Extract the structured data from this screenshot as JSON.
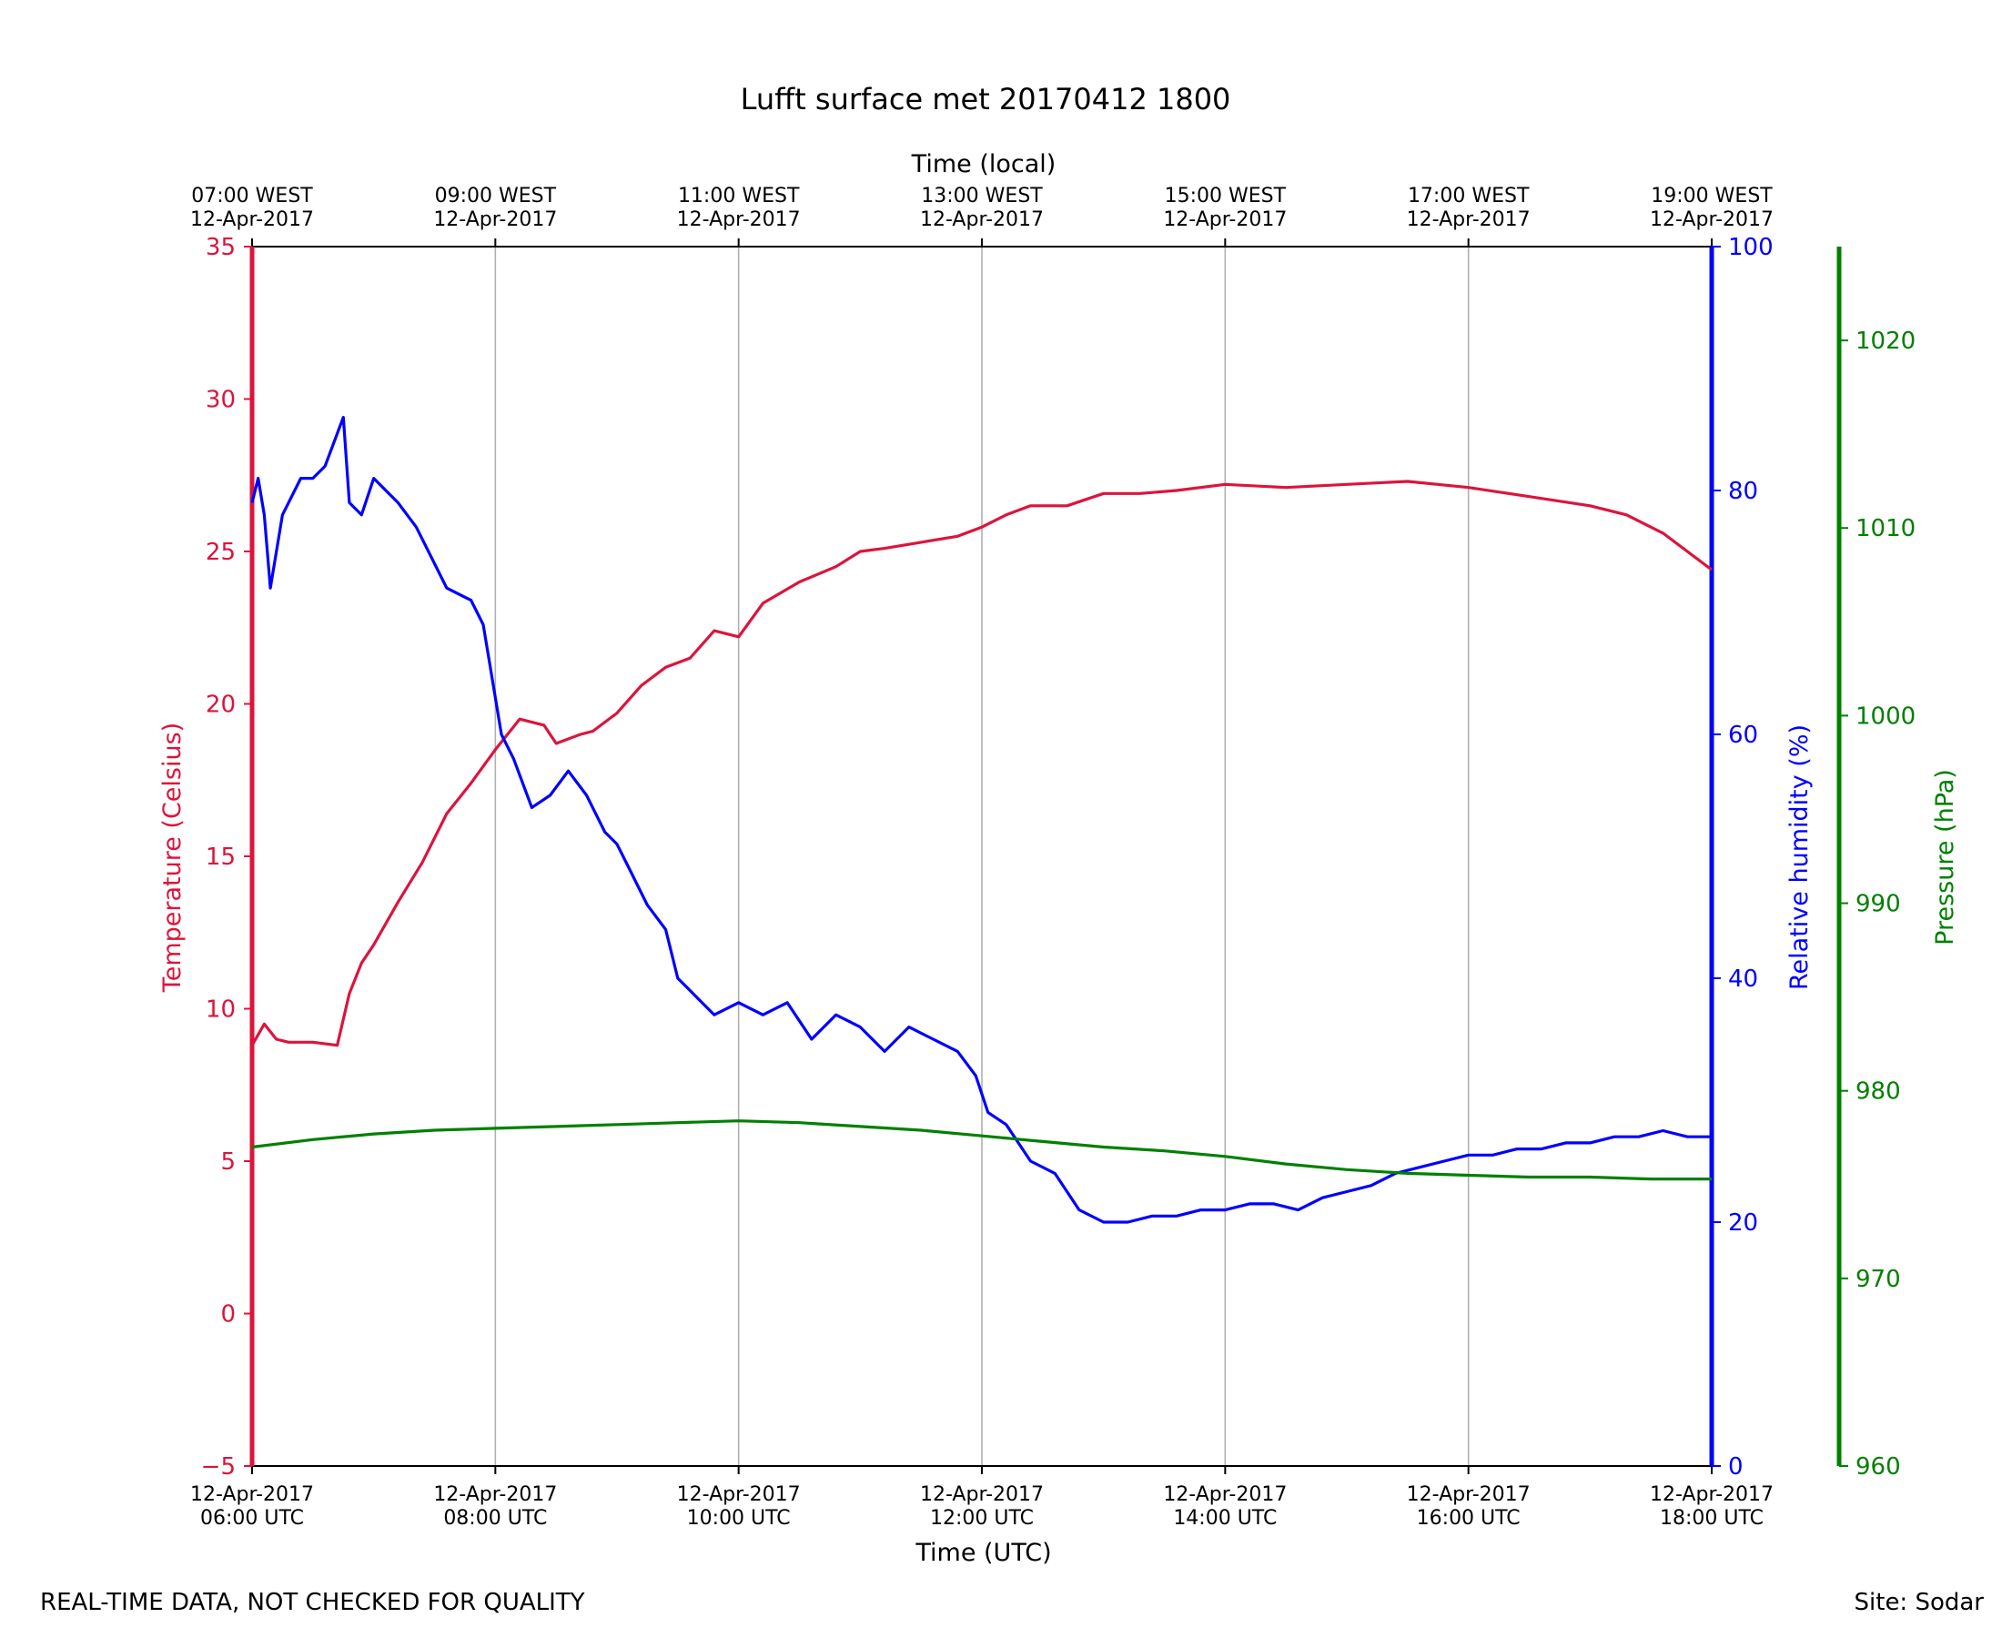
{
  "chart_data": {
    "type": "line",
    "title": "Lufft surface met 20170412 1800",
    "xlabel_bottom": "Time (UTC)",
    "xlabel_top": "Time (local)",
    "x_ticks_bottom": [
      {
        "t": 6,
        "line1": "12-Apr-2017",
        "line2": "06:00 UTC"
      },
      {
        "t": 8,
        "line1": "12-Apr-2017",
        "line2": "08:00 UTC"
      },
      {
        "t": 10,
        "line1": "12-Apr-2017",
        "line2": "10:00 UTC"
      },
      {
        "t": 12,
        "line1": "12-Apr-2017",
        "line2": "12:00 UTC"
      },
      {
        "t": 14,
        "line1": "12-Apr-2017",
        "line2": "14:00 UTC"
      },
      {
        "t": 16,
        "line1": "12-Apr-2017",
        "line2": "16:00 UTC"
      },
      {
        "t": 18,
        "line1": "12-Apr-2017",
        "line2": "18:00 UTC"
      }
    ],
    "x_ticks_top": [
      {
        "t": 6,
        "line1": "07:00 WEST",
        "line2": "12-Apr-2017"
      },
      {
        "t": 8,
        "line1": "09:00 WEST",
        "line2": "12-Apr-2017"
      },
      {
        "t": 10,
        "line1": "11:00 WEST",
        "line2": "12-Apr-2017"
      },
      {
        "t": 12,
        "line1": "13:00 WEST",
        "line2": "12-Apr-2017"
      },
      {
        "t": 14,
        "line1": "15:00 WEST",
        "line2": "12-Apr-2017"
      },
      {
        "t": 16,
        "line1": "17:00 WEST",
        "line2": "12-Apr-2017"
      },
      {
        "t": 18,
        "line1": "19:00 WEST",
        "line2": "12-Apr-2017"
      }
    ],
    "xlim": [
      6,
      18
    ],
    "grid": "vertical",
    "axes": {
      "temperature": {
        "label": "Temperature (Celsius)",
        "ylim": [
          -5,
          35
        ],
        "ticks": [
          -5,
          0,
          5,
          10,
          15,
          20,
          25,
          30,
          35
        ],
        "color": "#dc143c",
        "side": "left"
      },
      "humidity": {
        "label": "Relative humidity (%)",
        "ylim": [
          0,
          100
        ],
        "ticks": [
          0,
          20,
          40,
          60,
          80,
          100
        ],
        "color": "#0000ff",
        "side": "right"
      },
      "pressure": {
        "label": "Pressure (hPa)",
        "ylim": [
          960,
          1025
        ],
        "ticks": [
          960,
          970,
          980,
          990,
          1000,
          1010,
          1020
        ],
        "color": "#008000",
        "side": "right-outer"
      }
    },
    "series": [
      {
        "axis": "temperature",
        "x": [
          6.0,
          6.1,
          6.2,
          6.3,
          6.5,
          6.7,
          6.8,
          6.9,
          7.0,
          7.2,
          7.4,
          7.6,
          7.8,
          8.0,
          8.2,
          8.4,
          8.5,
          8.7,
          8.8,
          9.0,
          9.2,
          9.4,
          9.6,
          9.8,
          10.0,
          10.2,
          10.5,
          10.8,
          11.0,
          11.2,
          11.5,
          11.8,
          12.0,
          12.2,
          12.4,
          12.7,
          13.0,
          13.3,
          13.6,
          14.0,
          14.5,
          15.0,
          15.5,
          16.0,
          16.5,
          17.0,
          17.3,
          17.6,
          18.0
        ],
        "y": [
          8.8,
          9.5,
          9.0,
          8.9,
          8.9,
          8.8,
          10.5,
          11.5,
          12.1,
          13.5,
          14.8,
          16.4,
          17.4,
          18.5,
          19.5,
          19.3,
          18.7,
          19.0,
          19.1,
          19.7,
          20.6,
          21.2,
          21.5,
          22.4,
          22.2,
          23.3,
          24.0,
          24.5,
          25.0,
          25.1,
          25.3,
          25.5,
          25.8,
          26.2,
          26.5,
          26.5,
          26.9,
          26.9,
          27.0,
          27.2,
          27.1,
          27.2,
          27.3,
          27.1,
          26.8,
          26.5,
          26.2,
          25.6,
          24.4
        ]
      },
      {
        "axis": "humidity",
        "x": [
          6.0,
          6.05,
          6.1,
          6.15,
          6.25,
          6.4,
          6.5,
          6.6,
          6.75,
          6.8,
          6.9,
          7.0,
          7.1,
          7.2,
          7.35,
          7.5,
          7.6,
          7.8,
          7.9,
          7.95,
          8.05,
          8.15,
          8.3,
          8.45,
          8.6,
          8.75,
          8.9,
          9.0,
          9.1,
          9.25,
          9.4,
          9.5,
          9.6,
          9.8,
          10.0,
          10.2,
          10.4,
          10.6,
          10.8,
          11.0,
          11.2,
          11.4,
          11.6,
          11.8,
          11.95,
          12.05,
          12.2,
          12.4,
          12.6,
          12.8,
          13.0,
          13.2,
          13.4,
          13.6,
          13.8,
          14.0,
          14.2,
          14.4,
          14.6,
          14.8,
          15.0,
          15.2,
          15.4,
          15.6,
          15.8,
          16.0,
          16.2,
          16.4,
          16.6,
          16.8,
          17.0,
          17.2,
          17.4,
          17.6,
          17.8,
          18.0
        ],
        "y": [
          79.0,
          81.0,
          78.0,
          72.0,
          78.0,
          81.0,
          81.0,
          82.0,
          86.0,
          79.0,
          78.0,
          81.0,
          80.0,
          79.0,
          77.0,
          74.0,
          72.0,
          71.0,
          69.0,
          66.0,
          60.0,
          58.0,
          54.0,
          55.0,
          57.0,
          55.0,
          52.0,
          51.0,
          49.0,
          46.0,
          44.0,
          40.0,
          39.0,
          37.0,
          38.0,
          37.0,
          38.0,
          35.0,
          37.0,
          36.0,
          34.0,
          36.0,
          35.0,
          34.0,
          32.0,
          29.0,
          28.0,
          25.0,
          24.0,
          21.0,
          20.0,
          20.0,
          20.5,
          20.5,
          21.0,
          21.0,
          21.5,
          21.5,
          21.0,
          22.0,
          22.5,
          23.0,
          24.0,
          24.5,
          25.0,
          25.5,
          25.5,
          26.0,
          26.0,
          26.5,
          26.5,
          27.0,
          27.0,
          27.5,
          27.0,
          27.0
        ]
      },
      {
        "axis": "pressure",
        "x": [
          6.0,
          6.5,
          7.0,
          7.5,
          8.0,
          8.5,
          9.0,
          9.5,
          10.0,
          10.5,
          11.0,
          11.5,
          12.0,
          12.5,
          13.0,
          13.5,
          14.0,
          14.5,
          15.0,
          15.5,
          16.0,
          16.5,
          17.0,
          17.5,
          18.0
        ],
        "y": [
          977.0,
          977.4,
          977.7,
          977.9,
          978.0,
          978.1,
          978.2,
          978.3,
          978.4,
          978.3,
          978.1,
          977.9,
          977.6,
          977.3,
          977.0,
          976.8,
          976.5,
          976.1,
          975.8,
          975.6,
          975.5,
          975.4,
          975.4,
          975.3,
          975.3
        ]
      }
    ]
  },
  "footer": {
    "left": "REAL-TIME DATA, NOT CHECKED FOR QUALITY",
    "right": "Site: Sodar"
  }
}
